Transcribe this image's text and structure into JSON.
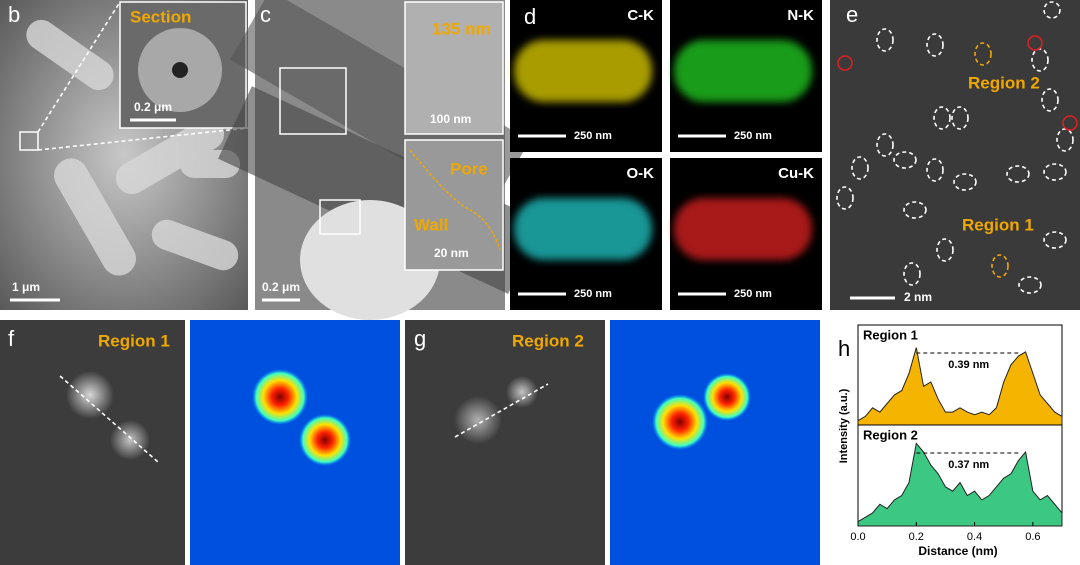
{
  "panels": {
    "b": {
      "label": "b",
      "inset_title": "Section",
      "inset_scale": "0.2 μm",
      "scale": "1 μm"
    },
    "c": {
      "label": "c",
      "width": "135 nm",
      "inset_scale_1": "100 nm",
      "pore": "Pore",
      "wall": "Wall",
      "inset_scale_2": "20 nm",
      "scale": "0.2 μm"
    },
    "d": {
      "label": "d",
      "maps": [
        {
          "element": "C-K",
          "scale": "250 nm"
        },
        {
          "element": "N-K",
          "scale": "250 nm"
        },
        {
          "element": "O-K",
          "scale": "250 nm"
        },
        {
          "element": "Cu-K",
          "scale": "250 nm"
        }
      ]
    },
    "e": {
      "label": "e",
      "region_2": "Region 2",
      "region_1": "Region 1",
      "scale": "2 nm"
    },
    "f": {
      "label": "f",
      "title": "Region 1"
    },
    "g": {
      "label": "g",
      "title": "Region 2"
    }
  },
  "chart_data": {
    "type": "area",
    "panel_label": "h",
    "x_label": "Distance (nm)",
    "y_label": "Intensity (a.u.)",
    "x": [
      0,
      0.025,
      0.05,
      0.075,
      0.1,
      0.125,
      0.15,
      0.175,
      0.2,
      0.225,
      0.25,
      0.275,
      0.3,
      0.325,
      0.35,
      0.375,
      0.4,
      0.425,
      0.45,
      0.475,
      0.5,
      0.525,
      0.55,
      0.575,
      0.6,
      0.625,
      0.65,
      0.675,
      0.7
    ],
    "series": [
      {
        "name": "Region 1",
        "color": "#f5b400",
        "annotation": "0.39 nm",
        "values": [
          0.05,
          0.1,
          0.2,
          0.15,
          0.25,
          0.35,
          0.4,
          0.6,
          0.9,
          0.45,
          0.5,
          0.3,
          0.15,
          0.15,
          0.2,
          0.15,
          0.12,
          0.15,
          0.12,
          0.2,
          0.5,
          0.7,
          0.8,
          0.85,
          0.6,
          0.35,
          0.25,
          0.15,
          0.1
        ]
      },
      {
        "name": "Region 2",
        "color": "#3cc882",
        "annotation": "0.37 nm",
        "values": [
          0.05,
          0.1,
          0.15,
          0.25,
          0.2,
          0.3,
          0.35,
          0.5,
          0.95,
          0.85,
          0.7,
          0.6,
          0.45,
          0.4,
          0.5,
          0.35,
          0.4,
          0.3,
          0.35,
          0.45,
          0.55,
          0.6,
          0.75,
          0.85,
          0.4,
          0.3,
          0.35,
          0.25,
          0.15
        ]
      }
    ],
    "xlim": [
      0,
      0.7
    ],
    "xticks": [
      {
        "value": 0,
        "label": "0.0"
      },
      0.2,
      0.4,
      0.6
    ],
    "ylim": [
      0,
      1
    ]
  }
}
